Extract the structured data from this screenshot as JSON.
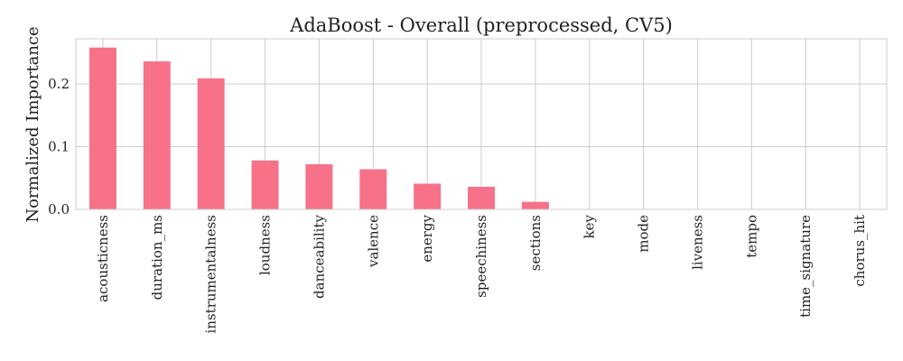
{
  "chart_data": {
    "type": "bar",
    "title": "AdaBoost - Overall (preprocessed, CV5)",
    "xlabel": "",
    "ylabel": "Normalized Importance",
    "categories": [
      "acousticness",
      "duration_ms",
      "instrumentalness",
      "loudness",
      "danceability",
      "valence",
      "energy",
      "speechiness",
      "sections",
      "key",
      "mode",
      "liveness",
      "tempo",
      "time_signature",
      "chorus_hit"
    ],
    "values": [
      0.258,
      0.236,
      0.209,
      0.078,
      0.072,
      0.064,
      0.041,
      0.036,
      0.012,
      0,
      0,
      0,
      0,
      0,
      0
    ],
    "ylim": [
      0,
      0.272
    ],
    "yticks": [
      0.0,
      0.1,
      0.2
    ],
    "ytick_labels": [
      "0.0",
      "0.1",
      "0.2"
    ],
    "grid": true,
    "bar_color": "#f77189",
    "grid_color": "#cccccc",
    "axis_color": "#cccccc"
  }
}
